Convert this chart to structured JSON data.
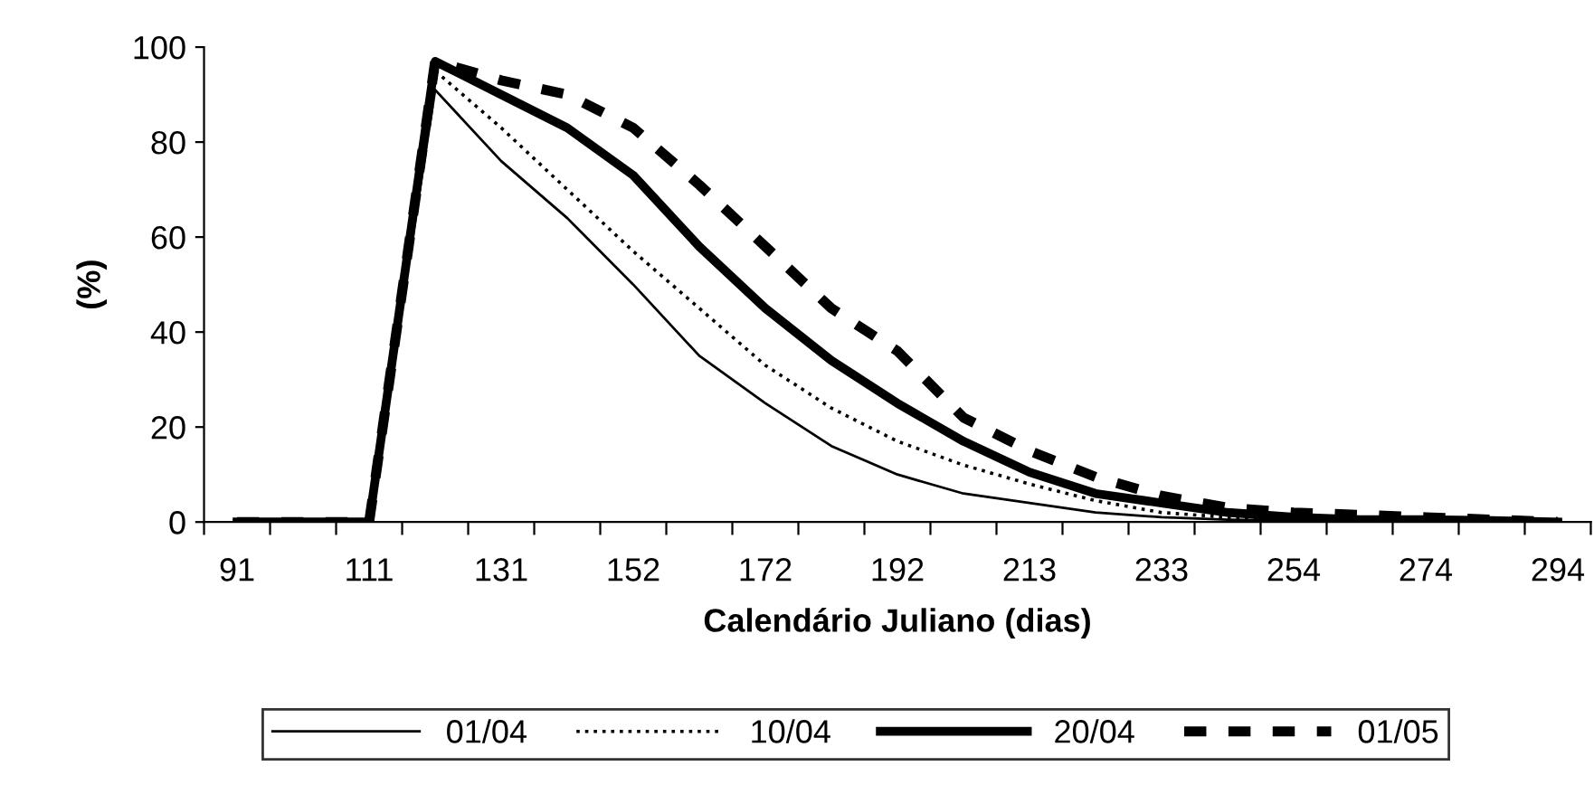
{
  "chart_data": {
    "type": "line",
    "xlabel": "Calendário Juliano (dias)",
    "ylabel": "(%)",
    "categories": [
      "91",
      null,
      "111",
      null,
      "131",
      null,
      "152",
      null,
      "172",
      null,
      "192",
      null,
      "213",
      null,
      "233",
      null,
      "254",
      null,
      "274",
      null,
      "294"
    ],
    "ylim": [
      0,
      100
    ],
    "yticks": [
      0,
      20,
      40,
      60,
      80,
      100
    ],
    "grid": false,
    "legend": "bottom",
    "marker": "none",
    "series": [
      {
        "name": "01/04",
        "color": "#000000",
        "line_style": "solid",
        "values": [
          0,
          0,
          0,
          91,
          76,
          64,
          50,
          35,
          25,
          16,
          10,
          6,
          4,
          2,
          1,
          0.5,
          0.3,
          0.2,
          0.1,
          0,
          0
        ]
      },
      {
        "name": "10/04",
        "color": "#000000",
        "line_style": "dotted",
        "values": [
          0,
          0,
          0,
          95,
          83,
          70,
          57,
          45,
          33,
          24,
          17,
          12,
          8,
          4.5,
          2,
          1,
          0.5,
          0.4,
          0.3,
          0.2,
          0
        ]
      },
      {
        "name": "20/04",
        "color": "#000000",
        "line_style": "solid",
        "values": [
          0,
          0,
          0,
          97,
          90,
          83,
          73,
          58,
          45,
          34,
          25,
          17,
          10.5,
          6,
          4,
          2,
          1,
          0.5,
          0.5,
          0.3,
          0
        ]
      },
      {
        "name": "01/05",
        "color": "#000000",
        "line_style": "dashed",
        "values": [
          0,
          0,
          0,
          97,
          93,
          90,
          83,
          71,
          58,
          45,
          36,
          22,
          15,
          9.5,
          5.5,
          3,
          2,
          1.5,
          1,
          0.5,
          0
        ]
      }
    ]
  }
}
